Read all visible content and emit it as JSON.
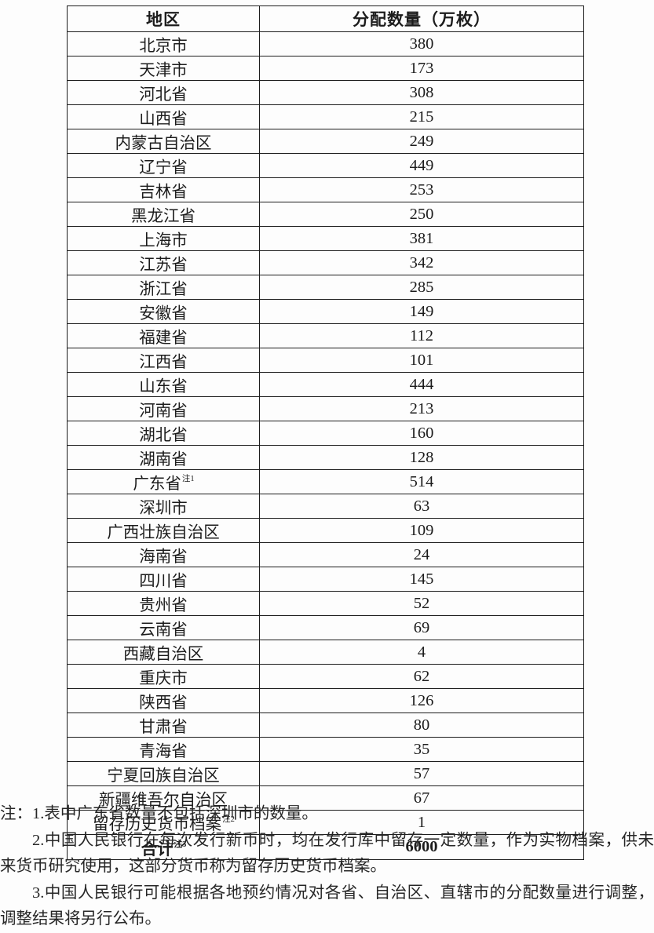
{
  "table": {
    "headers": {
      "region": "地区",
      "amount": "分配数量（万枚）"
    },
    "rows": [
      {
        "region": "北京市",
        "sup": "",
        "amount": "380"
      },
      {
        "region": "天津市",
        "sup": "",
        "amount": "173"
      },
      {
        "region": "河北省",
        "sup": "",
        "amount": "308"
      },
      {
        "region": "山西省",
        "sup": "",
        "amount": "215"
      },
      {
        "region": "内蒙古自治区",
        "sup": "",
        "amount": "249"
      },
      {
        "region": "辽宁省",
        "sup": "",
        "amount": "449"
      },
      {
        "region": "吉林省",
        "sup": "",
        "amount": "253"
      },
      {
        "region": "黑龙江省",
        "sup": "",
        "amount": "250"
      },
      {
        "region": "上海市",
        "sup": "",
        "amount": "381"
      },
      {
        "region": "江苏省",
        "sup": "",
        "amount": "342"
      },
      {
        "region": "浙江省",
        "sup": "",
        "amount": "285"
      },
      {
        "region": "安徽省",
        "sup": "",
        "amount": "149"
      },
      {
        "region": "福建省",
        "sup": "",
        "amount": "112"
      },
      {
        "region": "江西省",
        "sup": "",
        "amount": "101"
      },
      {
        "region": "山东省",
        "sup": "",
        "amount": "444"
      },
      {
        "region": "河南省",
        "sup": "",
        "amount": "213"
      },
      {
        "region": "湖北省",
        "sup": "",
        "amount": "160"
      },
      {
        "region": "湖南省",
        "sup": "",
        "amount": "128"
      },
      {
        "region": "广东省",
        "sup": "注1",
        "amount": "514"
      },
      {
        "region": "深圳市",
        "sup": "",
        "amount": "63"
      },
      {
        "region": "广西壮族自治区",
        "sup": "",
        "amount": "109"
      },
      {
        "region": "海南省",
        "sup": "",
        "amount": "24"
      },
      {
        "region": "四川省",
        "sup": "",
        "amount": "145"
      },
      {
        "region": "贵州省",
        "sup": "",
        "amount": "52"
      },
      {
        "region": "云南省",
        "sup": "",
        "amount": "69"
      },
      {
        "region": "西藏自治区",
        "sup": "",
        "amount": "4"
      },
      {
        "region": "重庆市",
        "sup": "",
        "amount": "62"
      },
      {
        "region": "陕西省",
        "sup": "",
        "amount": "126"
      },
      {
        "region": "甘肃省",
        "sup": "",
        "amount": "80"
      },
      {
        "region": "青海省",
        "sup": "",
        "amount": "35"
      },
      {
        "region": "宁夏回族自治区",
        "sup": "",
        "amount": "57"
      },
      {
        "region": "新疆维吾尔自治区",
        "sup": "",
        "amount": "67"
      },
      {
        "region": "留存历史货币档案",
        "sup": "注2",
        "amount": "1"
      },
      {
        "region": "合计",
        "sup": "注3",
        "amount": "6000",
        "total": true
      }
    ]
  },
  "notes": {
    "note1": "注：1.表中广东省数量不包括深圳市的数量。",
    "note2": "2.中国人民银行在每次发行新币时，均在发行库中留存一定数量，作为实物档案，供未来货币研究使用，这部分货币称为留存历史货币档案。",
    "note3": "3.中国人民银行可能根据各地预约情况对各省、自治区、直辖市的分配数量进行调整，调整结果将另行公布。"
  },
  "colors": {
    "border": "#1d1d1d",
    "text": "#1c1c1c",
    "background": "#fdfdfd"
  }
}
